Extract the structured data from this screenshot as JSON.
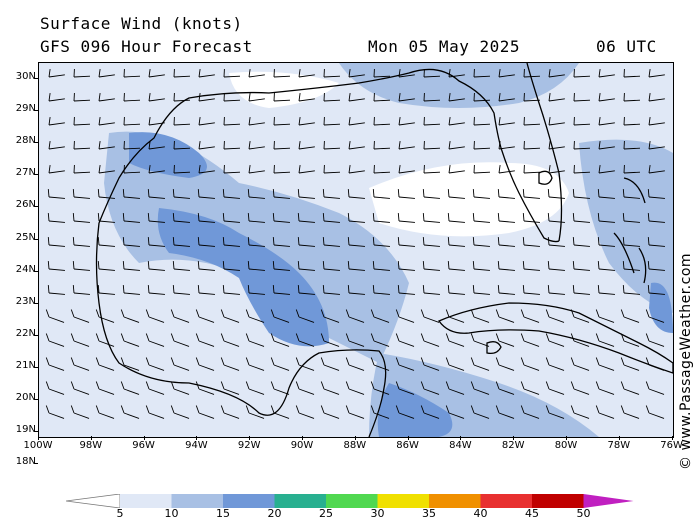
{
  "header": {
    "title": "Surface Wind (knots)",
    "subtitle": "GFS 096 Hour Forecast",
    "date": "Mon 05 May 2025",
    "time": "06 UTC"
  },
  "map": {
    "latitude_labels": [
      "30N",
      "29N",
      "28N",
      "27N",
      "26N",
      "25N",
      "24N",
      "23N",
      "22N",
      "21N",
      "20N",
      "19N",
      "18N"
    ],
    "longitude_labels": [
      "100W",
      "98W",
      "96W",
      "94W",
      "92W",
      "90W",
      "88W",
      "86W",
      "84W",
      "82W",
      "80W",
      "78W",
      "76W"
    ],
    "wind_barb_color": "#000000",
    "coastline_color": "#000000"
  },
  "colorbar": {
    "labels": [
      "5",
      "10",
      "15",
      "20",
      "25",
      "30",
      "35",
      "40",
      "45",
      "50"
    ],
    "colors": [
      "#e0e8f6",
      "#a8c0e4",
      "#7098d8",
      "#28b090",
      "#50d850",
      "#f0e000",
      "#f09000",
      "#e83030",
      "#c00000",
      "#c020c0"
    ]
  },
  "watermark": {
    "text": "© www.PassageWeather.com"
  }
}
